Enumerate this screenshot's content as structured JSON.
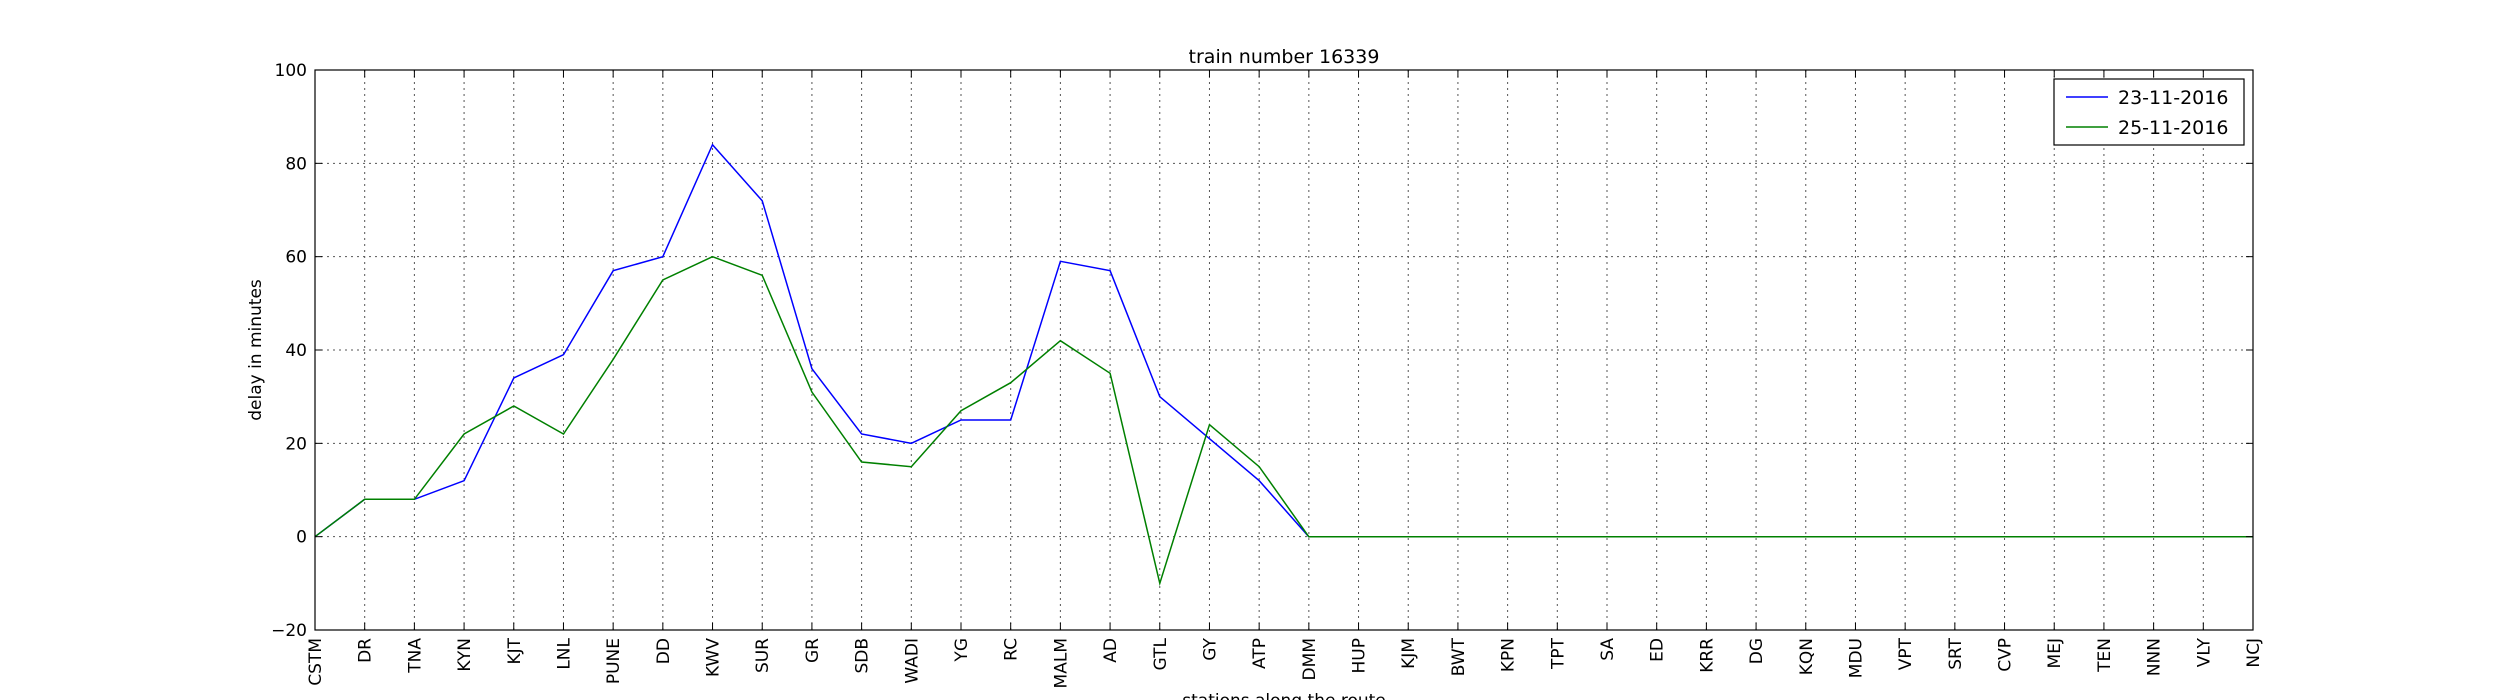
{
  "chart_data": {
    "type": "line",
    "title": "train number 16339",
    "xlabel": "stations along the route",
    "ylabel": "delay in minutes",
    "ylim": [
      -20,
      100
    ],
    "yticks": [
      -20,
      0,
      20,
      40,
      60,
      80,
      100
    ],
    "grid": true,
    "legend_position": "top-right",
    "categories": [
      "CSTM",
      "DR",
      "TNA",
      "KYN",
      "KJT",
      "LNL",
      "PUNE",
      "DD",
      "KWV",
      "SUR",
      "GR",
      "SDB",
      "WADI",
      "YG",
      "RC",
      "MALM",
      "AD",
      "GTL",
      "GY",
      "ATP",
      "DMM",
      "HUP",
      "KJM",
      "BWT",
      "KPN",
      "TPT",
      "SA",
      "ED",
      "KRR",
      "DG",
      "KQN",
      "MDU",
      "VPT",
      "SRT",
      "CVP",
      "MEJ",
      "TEN",
      "NNN",
      "VLY",
      "NCJ"
    ],
    "series": [
      {
        "name": "23-11-2016",
        "color": "#0000ff",
        "values": [
          0,
          8,
          8,
          12,
          34,
          39,
          57,
          60,
          84,
          72,
          36,
          22,
          20,
          25,
          25,
          59,
          57,
          30,
          21,
          12,
          0,
          0,
          0,
          0,
          0,
          0,
          0,
          0,
          0,
          0,
          0,
          0,
          0,
          0,
          0,
          0,
          0,
          0,
          0,
          0
        ]
      },
      {
        "name": "25-11-2016",
        "color": "#008000",
        "values": [
          0,
          8,
          8,
          22,
          28,
          22,
          38,
          55,
          60,
          56,
          31,
          16,
          15,
          27,
          33,
          42,
          35,
          -10,
          24,
          15,
          0,
          0,
          0,
          0,
          0,
          0,
          0,
          0,
          0,
          0,
          0,
          0,
          0,
          0,
          0,
          0,
          0,
          0,
          0,
          0
        ]
      }
    ]
  }
}
